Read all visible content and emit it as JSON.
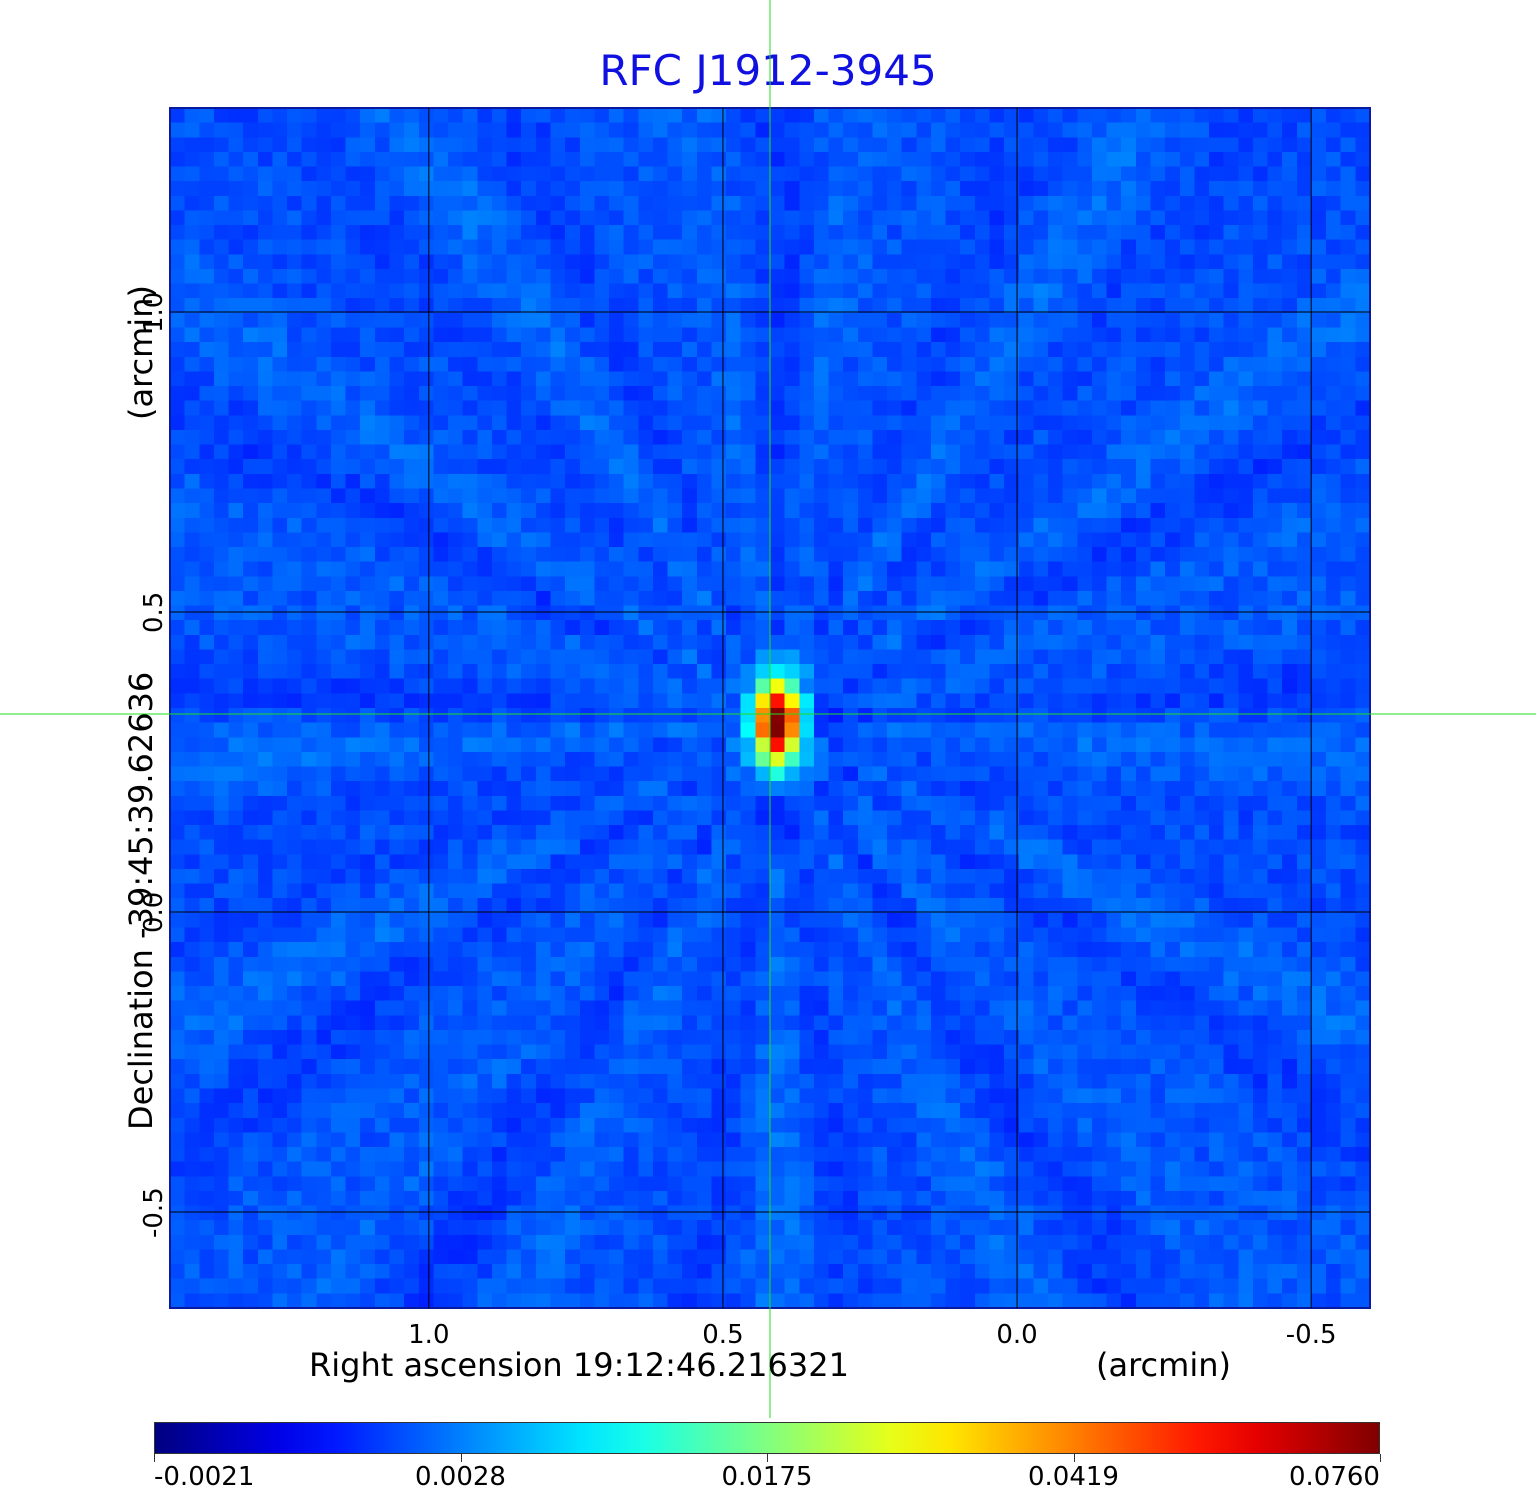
{
  "chart_data": {
    "type": "heatmap",
    "title": "RFC J1912-3945",
    "xlabel": "Right ascension  19:12:46.216321",
    "xunit": "(arcmin)",
    "ylabel": "Declination  -39:45:39.62636",
    "yunit": "(arcmin)",
    "xlim": [
      1.44,
      -0.6
    ],
    "ylim": [
      -0.66,
      1.34
    ],
    "x_ticks": [
      1.0,
      0.5,
      0.0,
      -0.5
    ],
    "x_tick_labels": [
      "1.0",
      "0.5",
      "0.0",
      "-0.5"
    ],
    "y_ticks": [
      1.0,
      0.5,
      0.0,
      -0.5
    ],
    "y_tick_labels": [
      "1.0",
      "0.5",
      "0.0",
      "-0.5"
    ],
    "grid": true,
    "colormap": "jet",
    "colorbar": {
      "ticks": [
        "-0.0021",
        "0.0028",
        "0.0175",
        "0.0419",
        "0.0760"
      ],
      "min": -0.0021,
      "max": 0.076
    },
    "source_peak": {
      "ra_arcmin": 0.42,
      "dec_arcmin": 0.33,
      "value": 0.076
    },
    "crosshair": {
      "ra_arcmin": 0.42,
      "dec_arcmin": 0.33
    },
    "colors": {
      "title": "#1010e0",
      "crosshair": "#22dd22",
      "grid": "#000000"
    }
  }
}
